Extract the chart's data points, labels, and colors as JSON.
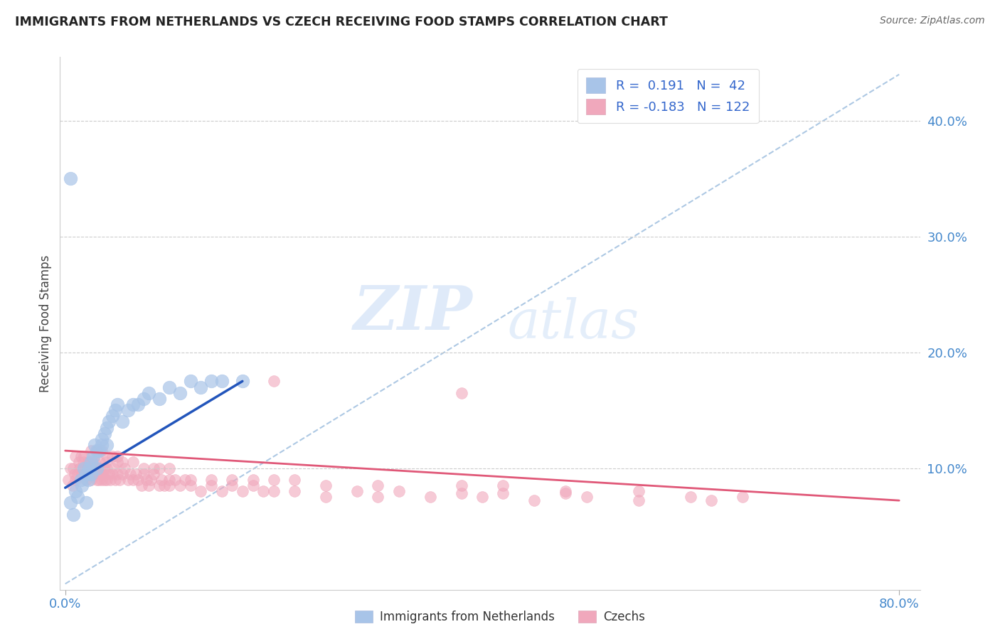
{
  "title": "IMMIGRANTS FROM NETHERLANDS VS CZECH RECEIVING FOOD STAMPS CORRELATION CHART",
  "source": "Source: ZipAtlas.com",
  "ylabel": "Receiving Food Stamps",
  "xlim": [
    -0.005,
    0.82
  ],
  "ylim": [
    -0.005,
    0.455
  ],
  "xtick_positions": [
    0.0,
    0.8
  ],
  "xticklabels": [
    "0.0%",
    "80.0%"
  ],
  "ytick_positions": [
    0.1,
    0.2,
    0.3,
    0.4
  ],
  "yticklabels": [
    "10.0%",
    "20.0%",
    "30.0%",
    "40.0%"
  ],
  "color_nl": "#a8c4e8",
  "color_cz": "#f0a8bc",
  "line_color_nl": "#2255bb",
  "line_color_cz": "#e05878",
  "dashed_color": "#99bbdd",
  "watermark_zip": "ZIP",
  "watermark_atlas": "atlas",
  "background_color": "#ffffff",
  "grid_color": "#cccccc",
  "nl_line_x": [
    0.0,
    0.17
  ],
  "nl_line_y": [
    0.083,
    0.175
  ],
  "cz_line_x": [
    0.0,
    0.8
  ],
  "cz_line_y": [
    0.115,
    0.072
  ],
  "dashed_line_x": [
    0.0,
    0.8
  ],
  "dashed_line_y": [
    0.0,
    0.44
  ],
  "nl_dot_size": 180,
  "cz_dot_size": 130,
  "legend_r1": "R =  0.191",
  "legend_n1": "N =  42",
  "legend_r2": "R = -0.183",
  "legend_n2": "N = 122",
  "bottom_label_nl": "Immigrants from Netherlands",
  "bottom_label_cz": "Czechs",
  "nl_x": [
    0.005,
    0.008,
    0.01,
    0.012,
    0.015,
    0.016,
    0.018,
    0.02,
    0.02,
    0.022,
    0.023,
    0.025,
    0.025,
    0.027,
    0.028,
    0.03,
    0.03,
    0.032,
    0.035,
    0.035,
    0.038,
    0.04,
    0.04,
    0.042,
    0.045,
    0.048,
    0.05,
    0.055,
    0.06,
    0.065,
    0.07,
    0.075,
    0.08,
    0.09,
    0.1,
    0.11,
    0.12,
    0.13,
    0.14,
    0.15,
    0.17,
    0.005
  ],
  "nl_y": [
    0.07,
    0.06,
    0.08,
    0.075,
    0.09,
    0.085,
    0.1,
    0.07,
    0.095,
    0.09,
    0.1,
    0.095,
    0.105,
    0.11,
    0.12,
    0.1,
    0.115,
    0.115,
    0.12,
    0.125,
    0.13,
    0.12,
    0.135,
    0.14,
    0.145,
    0.15,
    0.155,
    0.14,
    0.15,
    0.155,
    0.155,
    0.16,
    0.165,
    0.16,
    0.17,
    0.165,
    0.175,
    0.17,
    0.175,
    0.175,
    0.175,
    0.35
  ],
  "cz_x": [
    0.003,
    0.005,
    0.007,
    0.008,
    0.009,
    0.01,
    0.01,
    0.012,
    0.013,
    0.014,
    0.015,
    0.016,
    0.017,
    0.018,
    0.018,
    0.02,
    0.02,
    0.021,
    0.022,
    0.023,
    0.024,
    0.025,
    0.025,
    0.026,
    0.027,
    0.028,
    0.029,
    0.03,
    0.03,
    0.031,
    0.032,
    0.033,
    0.034,
    0.035,
    0.035,
    0.036,
    0.037,
    0.038,
    0.039,
    0.04,
    0.04,
    0.042,
    0.043,
    0.045,
    0.046,
    0.048,
    0.05,
    0.05,
    0.052,
    0.055,
    0.057,
    0.06,
    0.062,
    0.065,
    0.068,
    0.07,
    0.073,
    0.075,
    0.078,
    0.08,
    0.082,
    0.085,
    0.09,
    0.092,
    0.095,
    0.1,
    0.1,
    0.105,
    0.11,
    0.115,
    0.12,
    0.13,
    0.14,
    0.15,
    0.16,
    0.17,
    0.18,
    0.19,
    0.2,
    0.22,
    0.25,
    0.28,
    0.3,
    0.32,
    0.35,
    0.38,
    0.4,
    0.42,
    0.45,
    0.48,
    0.5,
    0.55,
    0.6,
    0.62,
    0.65,
    0.38,
    0.2,
    0.025,
    0.03,
    0.035,
    0.04,
    0.045,
    0.05,
    0.055,
    0.065,
    0.075,
    0.085,
    0.09,
    0.1,
    0.12,
    0.14,
    0.16,
    0.18,
    0.2,
    0.22,
    0.25,
    0.3,
    0.38,
    0.42,
    0.48,
    0.55
  ],
  "cz_y": [
    0.09,
    0.1,
    0.085,
    0.1,
    0.095,
    0.09,
    0.11,
    0.095,
    0.105,
    0.1,
    0.11,
    0.095,
    0.105,
    0.1,
    0.11,
    0.09,
    0.1,
    0.095,
    0.105,
    0.1,
    0.095,
    0.09,
    0.105,
    0.1,
    0.095,
    0.105,
    0.1,
    0.09,
    0.1,
    0.095,
    0.09,
    0.105,
    0.095,
    0.1,
    0.09,
    0.095,
    0.1,
    0.09,
    0.105,
    0.09,
    0.1,
    0.095,
    0.09,
    0.095,
    0.1,
    0.09,
    0.095,
    0.105,
    0.09,
    0.095,
    0.1,
    0.09,
    0.095,
    0.09,
    0.095,
    0.09,
    0.085,
    0.095,
    0.09,
    0.085,
    0.09,
    0.095,
    0.085,
    0.09,
    0.085,
    0.09,
    0.085,
    0.09,
    0.085,
    0.09,
    0.085,
    0.08,
    0.085,
    0.08,
    0.085,
    0.08,
    0.085,
    0.08,
    0.08,
    0.08,
    0.075,
    0.08,
    0.075,
    0.08,
    0.075,
    0.078,
    0.075,
    0.078,
    0.072,
    0.078,
    0.075,
    0.072,
    0.075,
    0.072,
    0.075,
    0.165,
    0.175,
    0.115,
    0.115,
    0.115,
    0.11,
    0.11,
    0.11,
    0.105,
    0.105,
    0.1,
    0.1,
    0.1,
    0.1,
    0.09,
    0.09,
    0.09,
    0.09,
    0.09,
    0.09,
    0.085,
    0.085,
    0.085,
    0.085,
    0.08,
    0.08
  ]
}
